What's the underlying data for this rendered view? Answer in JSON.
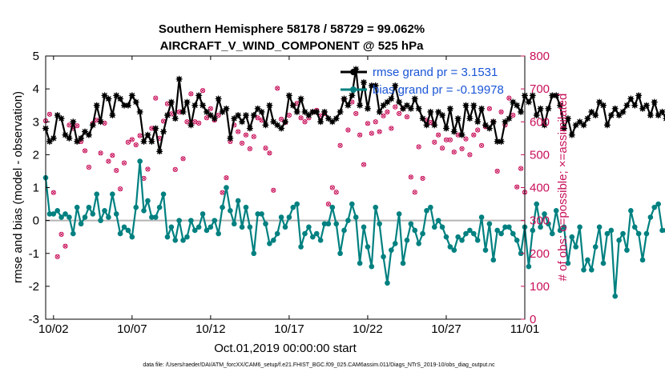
{
  "chart_data": {
    "type": "line",
    "title_line1": "Southern Hemisphere 58178 / 58729 = 99.062%",
    "title_line2": "AIRCRAFT_V_WIND_COMPONENT @ 525 hPa",
    "xlabel": "Oct.01,2019 00:00:00 start",
    "ylabel_left": "rmse and bias (model - observation)",
    "ylabel_right": "# of obs: o=possible; ×=assimilated",
    "footnote": "data file: /Users/raeder/DAI/ATM_forcXX/CAM6_setup/f.e21.FHIST_BGC.f09_025.CAM6assim.011/Diags_NTrS_2019-10/obs_diag_output.nc",
    "x_range_days": [
      0.5,
      31.0
    ],
    "ylim_left": [
      -3,
      5
    ],
    "ylim_right": [
      0,
      800
    ],
    "x_ticks": [
      {
        "day": 1.0,
        "label": "10/02"
      },
      {
        "day": 6.0,
        "label": "10/07"
      },
      {
        "day": 11.0,
        "label": "10/12"
      },
      {
        "day": 16.0,
        "label": "10/17"
      },
      {
        "day": 21.0,
        "label": "10/22"
      },
      {
        "day": 26.0,
        "label": "10/27"
      },
      {
        "day": 31.0,
        "label": "11/01"
      }
    ],
    "y_ticks_left": [
      "5",
      "4",
      "3",
      "2",
      "1",
      "0",
      "-1",
      "-2",
      "-3"
    ],
    "y_ticks_right": [
      "800",
      "700",
      "600",
      "500",
      "400",
      "300",
      "200",
      "100",
      "0"
    ],
    "zero_line": 0,
    "time_step_days": 0.25,
    "time_start_day": 0.5,
    "legend": [
      {
        "name": "rmse",
        "label": "rmse grand pr = 3.1531",
        "color": "#000000"
      },
      {
        "name": "bias",
        "label": "bias grand pr = -0.19978",
        "color": "#008080"
      }
    ],
    "series": [
      {
        "name": "rmse",
        "color": "#000000",
        "marker": "star",
        "values": [
          2.8,
          2.4,
          2.5,
          3.2,
          3.1,
          2.6,
          2.5,
          3,
          2.4,
          2.5,
          2.7,
          2.6,
          2.9,
          3.5,
          3,
          3.8,
          3.7,
          3.2,
          3.8,
          3.7,
          3.5,
          3.5,
          3.8,
          3.6,
          3.3,
          2.4,
          2.6,
          2.4,
          2.8,
          2.1,
          2.7,
          3.2,
          3.6,
          3.1,
          4.3,
          3.3,
          3.6,
          2.9,
          3.5,
          3.8,
          3.5,
          3.3,
          3.2,
          3.1,
          3.7,
          3.3,
          3.4,
          2.5,
          3.1,
          3.2,
          3,
          3.2,
          2.8,
          3.2,
          3.4,
          3.3,
          2.9,
          3.5,
          3,
          2.9,
          2.8,
          3,
          3.8,
          3.5,
          3.3,
          3.7,
          3.3,
          3.2,
          3.3,
          3.3,
          3,
          3.3,
          3.1,
          3,
          3.1,
          3.3,
          3.7,
          3.5,
          3.8,
          4.6,
          3.5,
          4.2,
          3.4,
          4.1,
          4.1,
          3.3,
          3.5,
          3.6,
          3.7,
          4.1,
          3.6,
          3.4,
          3.5,
          3.4,
          3.7,
          3.4,
          3.1,
          2.9,
          3.3,
          2.9,
          3.3,
          3.2,
          2.8,
          3.4,
          2.7,
          3.1,
          2.6,
          3.5,
          3.1,
          3.5,
          3,
          3.4,
          2.9,
          2.8,
          3,
          2.4,
          2.4,
          3,
          3.1,
          3.6,
          3.5,
          3.3,
          3.8,
          3.6,
          3.8,
          3.2,
          3.4,
          2.9,
          3.4,
          3.8,
          3.8,
          3.5,
          2.8,
          3.1,
          2.6,
          2.9,
          3,
          2.9,
          3.1,
          3.3,
          3.2,
          3.6,
          3.5,
          2.9,
          3.2,
          3.4,
          3.2,
          3.3,
          3.5,
          3.7,
          3.5,
          3.8,
          3.4,
          3.5,
          3.2,
          3.6,
          3.2,
          3.3,
          3.1,
          3.8,
          3.6,
          2.7,
          2.6,
          3,
          3.2
        ]
      },
      {
        "name": "bias",
        "color": "#008080",
        "marker": "dot",
        "values": [
          1.3,
          0.2,
          0.2,
          0.3,
          0.1,
          0.2,
          0.1,
          -0.4,
          0.4,
          -0.1,
          0.1,
          0.4,
          0.2,
          0.8,
          0,
          0.3,
          0.1,
          0.8,
          0.2,
          -0.4,
          -0.2,
          -0.3,
          -0.5,
          0.4,
          1.8,
          0.3,
          0.6,
          0.1,
          0.1,
          0.4,
          0.8,
          -0.5,
          -0.2,
          -0.6,
          0,
          -0.6,
          -0.5,
          0,
          -0.3,
          -0.2,
          0.2,
          -0.3,
          -0.2,
          0,
          -0.4,
          0.4,
          1,
          0.3,
          -0.1,
          0.6,
          -0.2,
          0.4,
          -0.2,
          -1,
          0.2,
          0.2,
          -0.1,
          -0.7,
          -0.6,
          -0.4,
          0.1,
          -0.2,
          0.1,
          0.4,
          0.5,
          -0.8,
          -0.4,
          -0.2,
          -0.5,
          -0.4,
          -0.6,
          -0.1,
          -0.1,
          0.4,
          -0.1,
          -1,
          -0.3,
          0,
          0.5,
          0.1,
          -1.3,
          -0.2,
          -0.8,
          -1.4,
          0.4,
          -0.1,
          -1.1,
          -1.9,
          -0.9,
          -0.7,
          0.2,
          -1.3,
          -0.6,
          -0.1,
          -0.3,
          -0.7,
          -0.4,
          0.3,
          0.4,
          -0.2,
          0,
          -0.2,
          -0.5,
          -0.8,
          -0.9,
          -0.5,
          -0.6,
          -0.4,
          -0.3,
          -0.4,
          -0.6,
          0.1,
          -0.9,
          -0.1,
          -1.2,
          -0.3,
          -0.4,
          -0.2,
          -0.2,
          -0.4,
          -0.6,
          -1,
          -0.2,
          -1.4,
          -0.3,
          0.5,
          -0.2,
          0.2,
          -0.1,
          -0.4,
          0.3,
          -0.3,
          -0.2,
          -1.3,
          -0.5,
          -0.8,
          -0.2,
          -1.5,
          -1.2,
          -1.5,
          -0.8,
          -0.2,
          -1.3,
          -0.4,
          -0.3,
          -2.3,
          -0.6,
          -0.4,
          -0.9,
          0.3,
          -0.2,
          -0.4,
          -1.2,
          -0.4,
          0.1,
          0.4,
          0.5,
          -0.3,
          -0.3,
          -0.7,
          -0.3,
          -0.7,
          -0.9,
          -0.7,
          -0.5,
          -0.5,
          -1.3
        ]
      },
      {
        "name": "obs_possible",
        "color": "#c8105a",
        "marker": "circle",
        "axis": "right",
        "values": [
          603,
          623,
          385,
          190,
          258,
          222,
          590,
          580,
          588,
          540,
          512,
          462,
          595,
          605,
          505,
          596,
          480,
          498,
          452,
          396,
          475,
          538,
          546,
          530,
          558,
          428,
          456,
          580,
          672,
          550,
          602,
          655,
          624,
          455,
          630,
          488,
          600,
          685,
          600,
          596,
          695,
          612,
          640,
          605,
          620,
          385,
          430,
          540,
          590,
          570,
          535,
          560,
          518,
          555,
          612,
          605,
          520,
          505,
          392,
          702,
          608,
          598,
          620,
          650,
          656,
          612,
          600,
          612,
          630,
          635,
          618,
          625,
          350,
          400,
          386,
          528,
          668,
          575,
          660,
          625,
          560,
          470,
          595,
          565,
          600,
          570,
          618,
          630,
          580,
          645,
          625,
          640,
          615,
          432,
          386,
          524,
          428,
          605,
          598,
          538,
          560,
          520,
          545,
          545,
          508,
          560,
          518,
          548,
          500,
          560,
          575,
          528,
          585,
          640,
          600,
          450,
          630,
          590,
          672,
          620,
          402,
          458,
          386,
          535,
          628,
          640,
          595,
          640,
          618,
          590,
          625,
          620,
          470,
          600,
          640,
          645,
          600,
          605,
          625,
          605,
          590,
          572,
          540,
          598,
          616,
          598,
          620,
          606,
          618,
          600,
          622,
          598,
          620,
          580,
          620,
          610,
          596,
          612,
          400,
          452,
          350,
          320,
          300,
          282
        ]
      },
      {
        "name": "obs_assimilated",
        "color": "#c8105a",
        "marker": "x",
        "axis": "right",
        "values": [
          603,
          623,
          385,
          190,
          258,
          222,
          590,
          580,
          588,
          540,
          512,
          462,
          595,
          605,
          505,
          596,
          480,
          498,
          452,
          396,
          475,
          538,
          546,
          530,
          558,
          428,
          456,
          580,
          672,
          550,
          602,
          655,
          624,
          455,
          630,
          488,
          600,
          685,
          600,
          596,
          695,
          612,
          640,
          605,
          620,
          385,
          430,
          540,
          590,
          570,
          535,
          560,
          518,
          555,
          612,
          605,
          520,
          505,
          392,
          702,
          608,
          598,
          620,
          650,
          656,
          612,
          600,
          612,
          630,
          635,
          618,
          625,
          350,
          400,
          386,
          528,
          668,
          575,
          660,
          625,
          560,
          470,
          595,
          565,
          600,
          570,
          618,
          630,
          580,
          645,
          625,
          640,
          615,
          432,
          386,
          524,
          428,
          605,
          598,
          538,
          560,
          520,
          545,
          545,
          508,
          560,
          518,
          548,
          500,
          560,
          575,
          528,
          585,
          640,
          600,
          450,
          630,
          590,
          672,
          620,
          402,
          458,
          386,
          535,
          628,
          640,
          595,
          640,
          618,
          590,
          625,
          620,
          470,
          600,
          640,
          645,
          600,
          605,
          625,
          605,
          590,
          572,
          540,
          598,
          616,
          598,
          620,
          606,
          618,
          600,
          622,
          598,
          620,
          580,
          620,
          610,
          596,
          612,
          400,
          452,
          350,
          320,
          300,
          282
        ]
      }
    ]
  }
}
